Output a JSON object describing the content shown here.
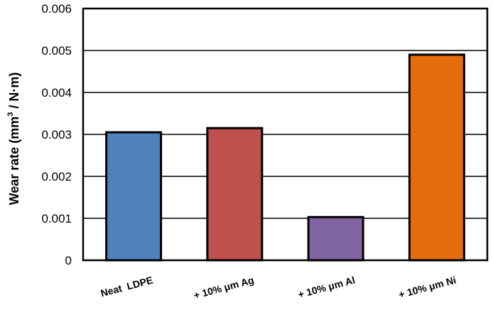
{
  "chart_data": {
    "type": "bar",
    "categories": [
      "Neat  LDPE",
      "+ 10% μm Ag",
      "+ 10% μm Al",
      "+ 10% μm Ni"
    ],
    "values": [
      0.00305,
      0.00315,
      0.00103,
      0.0049
    ],
    "colors": [
      "#4f81bd",
      "#c0504d",
      "#8064a2",
      "#e46c0a"
    ],
    "yticks": [
      "0",
      "0.001",
      "0.002",
      "0.003",
      "0.004",
      "0.005",
      "0.006"
    ],
    "ylim": [
      0,
      0.006
    ],
    "ylabel_main": "Wear rate (mm",
    "ylabel_sup": "3",
    "ylabel_end": " / N·m)",
    "xlabel": "",
    "grid": true,
    "legend": "none"
  }
}
